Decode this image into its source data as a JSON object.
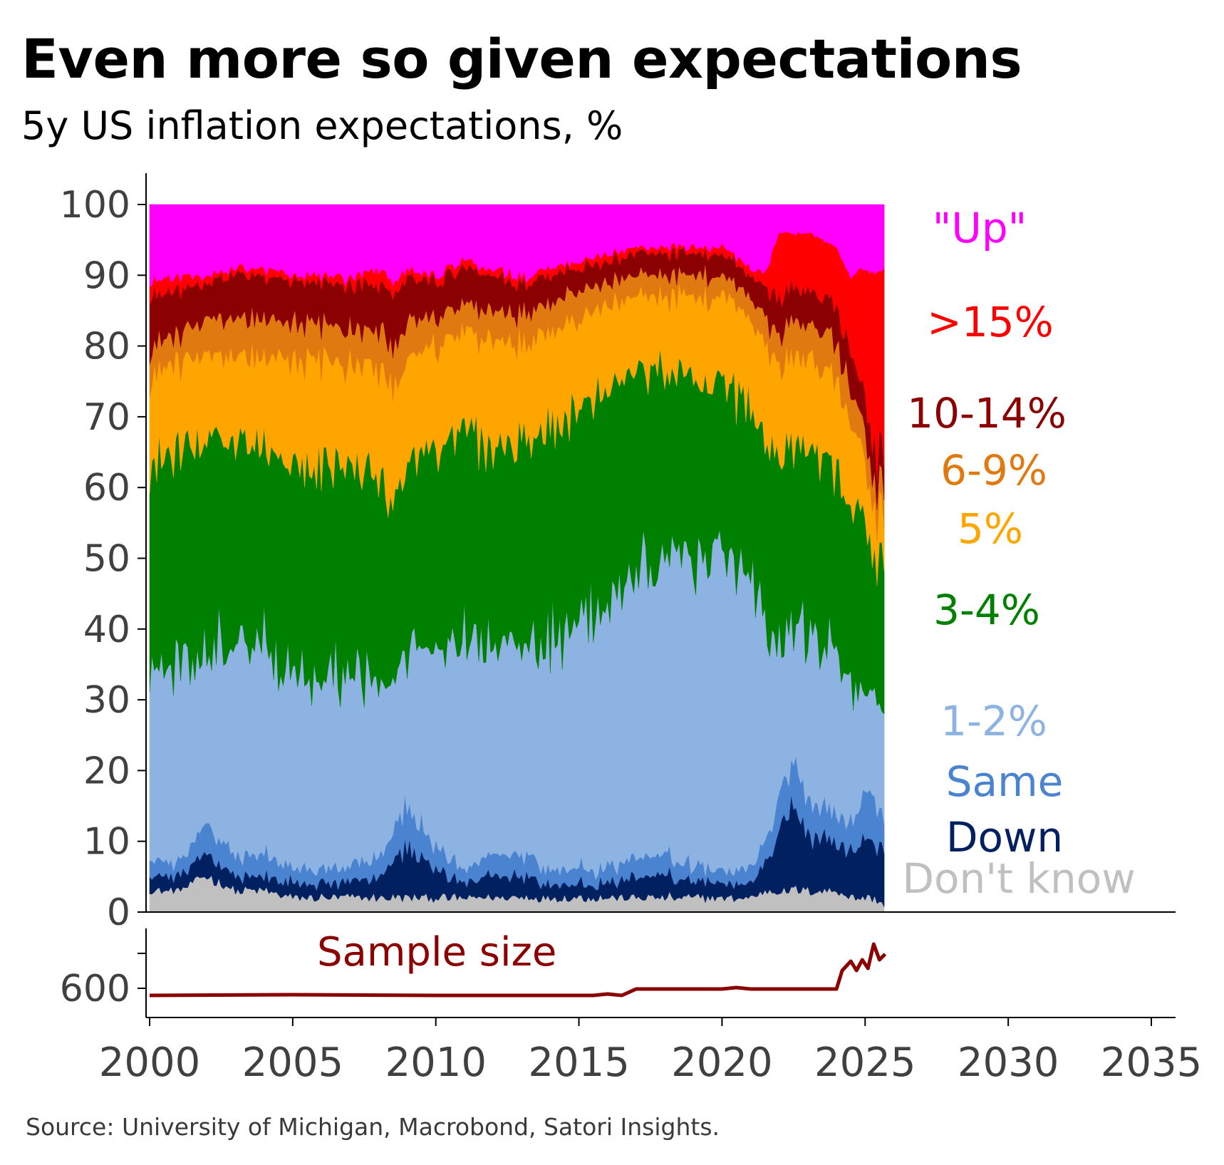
{
  "title": "Even more so given expectations",
  "subtitle": "5y US inflation expectations, %",
  "source": "Source: University of Michigan, Macrobond, Satori Insights.",
  "colors": {
    "dont_know": "#c0c0c0",
    "down": "#002060",
    "same": "#4a84d0",
    "one_two": "#8db3e2",
    "three_four": "#008000",
    "five": "#ffa500",
    "six_nine": "#e07a10",
    "ten_fourteen": "#8b0000",
    "over_fifteen": "#ff0000",
    "up": "#ff00ff",
    "sample": "#8b0000",
    "axis": "#000000",
    "tick_text": "#404040"
  },
  "chart_data": [
    {
      "type": "area",
      "stacked": true,
      "ylim": [
        0,
        100
      ],
      "yticks": [
        "0",
        "10",
        "20",
        "30",
        "40",
        "50",
        "60",
        "70",
        "80",
        "90",
        "100"
      ],
      "xlim": [
        2000,
        2036
      ],
      "xticks": [
        "2000",
        "2005",
        "2010",
        "2015",
        "2020",
        "2025",
        "2030",
        "2035"
      ],
      "legend_placement": "right (direct labels)",
      "x": [
        2000.0,
        2001.0,
        2002.0,
        2003.0,
        2004.0,
        2005.0,
        2006.0,
        2007.0,
        2008.0,
        2008.5,
        2009.0,
        2010.0,
        2011.0,
        2012.0,
        2013.0,
        2014.0,
        2015.0,
        2016.0,
        2017.0,
        2018.0,
        2019.0,
        2020.0,
        2021.0,
        2021.5,
        2022.0,
        2022.5,
        2023.0,
        2024.0,
        2024.5,
        2025.0,
        2025.3,
        2025.7
      ],
      "series": [
        {
          "name": "Don't know",
          "key": "dont_know",
          "values": [
            3,
            3,
            5,
            3,
            3,
            2,
            2,
            2,
            2,
            2,
            2,
            2,
            2,
            2,
            2,
            2,
            2,
            2,
            2,
            2,
            2,
            2,
            2,
            3,
            3,
            3,
            3,
            3,
            2,
            2,
            2,
            1
          ]
        },
        {
          "name": "Down",
          "key": "down",
          "values": [
            2,
            2,
            3,
            2,
            2,
            2,
            2,
            2,
            3,
            5,
            7,
            4,
            2,
            3,
            3,
            2,
            2,
            2,
            3,
            3,
            2,
            2,
            2,
            4,
            8,
            12,
            8,
            7,
            6,
            8,
            8,
            8
          ]
        },
        {
          "name": "Same",
          "key": "same",
          "values": [
            2,
            2,
            4,
            3,
            3,
            2,
            2,
            2,
            3,
            4,
            6,
            3,
            2,
            3,
            3,
            2,
            2,
            2,
            3,
            3,
            2,
            2,
            2,
            3,
            5,
            6,
            5,
            4,
            4,
            6,
            6,
            5
          ]
        },
        {
          "name": "1-2%",
          "key": "one_two",
          "values": [
            27,
            28,
            25,
            31,
            31,
            28,
            27,
            28,
            25,
            20,
            23,
            29,
            32,
            30,
            31,
            33,
            35,
            38,
            40,
            42,
            44,
            45,
            40,
            32,
            21,
            19,
            24,
            22,
            20,
            15,
            14,
            14
          ]
        },
        {
          "name": "3-4%",
          "key": "three_four",
          "values": [
            30,
            30,
            30,
            28,
            27,
            30,
            30,
            30,
            30,
            25,
            27,
            28,
            30,
            28,
            28,
            29,
            30,
            30,
            28,
            26,
            25,
            24,
            25,
            24,
            26,
            26,
            25,
            26,
            27,
            23,
            19,
            22
          ]
        },
        {
          "name": "5%",
          "key": "five",
          "values": [
            12,
            13,
            12,
            12,
            13,
            14,
            15,
            14,
            15,
            17,
            14,
            14,
            14,
            15,
            14,
            14,
            13,
            12,
            11,
            11,
            12,
            12,
            13,
            14,
            14,
            13,
            13,
            13,
            12,
            8,
            7,
            6
          ]
        },
        {
          "name": "6-9%",
          "key": "six_nine",
          "values": [
            4,
            4,
            5,
            5,
            5,
            5,
            5,
            5,
            5,
            6,
            5,
            4,
            4,
            4,
            4,
            4,
            4,
            3,
            3,
            3,
            3,
            3,
            3,
            4,
            5,
            5,
            5,
            5,
            5,
            4,
            4,
            4
          ]
        },
        {
          "name": "10-14%",
          "key": "ten_fourteen",
          "values": [
            7,
            6,
            5,
            6,
            6,
            6,
            6,
            6,
            6,
            8,
            6,
            5,
            5,
            5,
            4,
            4,
            3,
            3,
            3,
            3,
            3,
            3,
            3,
            4,
            5,
            5,
            5,
            5,
            5,
            5,
            5,
            5
          ]
        },
        {
          "name": ">15%",
          "key": "over_fifteen",
          "values": [
            2,
            2,
            1,
            1,
            1,
            1,
            1,
            1,
            2,
            2,
            1,
            1,
            1,
            1,
            1,
            1,
            1,
            1,
            1,
            1,
            1,
            1,
            1,
            2,
            9,
            7,
            8,
            9,
            9,
            20,
            25,
            26
          ]
        },
        {
          "name": "\"Up\"",
          "key": "up",
          "values": [
            11,
            10,
            10,
            9,
            9,
            10,
            10,
            10,
            9,
            11,
            9,
            10,
            8,
            9,
            10,
            9,
            8,
            7,
            6,
            6,
            6,
            6,
            9,
            10,
            4,
            4,
            4,
            6,
            10,
            9,
            10,
            9
          ]
        }
      ]
    },
    {
      "type": "line",
      "name": "Sample size",
      "yticks": [
        "600"
      ],
      "x": [
        2000.0,
        2005.0,
        2010.0,
        2015.5,
        2016.0,
        2016.5,
        2017.0,
        2020.0,
        2020.5,
        2021.0,
        2024.0,
        2024.2,
        2024.5,
        2024.7,
        2024.9,
        2025.1,
        2025.3,
        2025.5,
        2025.7
      ],
      "values": [
        590,
        591,
        590,
        590,
        592,
        590,
        599,
        599,
        601,
        599,
        599,
        625,
        638,
        625,
        640,
        628,
        662,
        640,
        648
      ]
    }
  ]
}
